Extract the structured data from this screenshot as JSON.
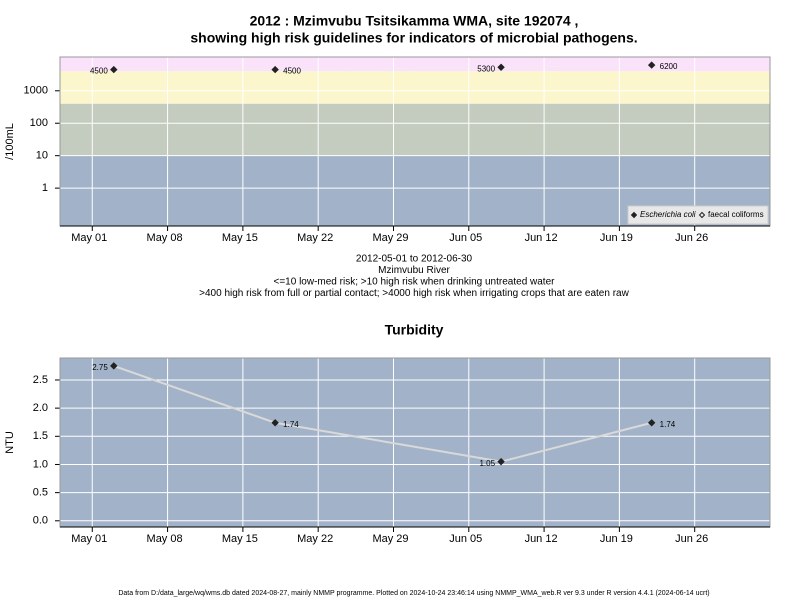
{
  "chart_data": [
    {
      "type": "scatter",
      "title": [
        "2012 : Mzimvubu Tsitsikamma WMA, site 192074 ,",
        "showing high risk guidelines for indicators of microbial pathogens."
      ],
      "y_label": "/100mL",
      "log_y": true,
      "x": [
        "2012-05-03",
        "2012-05-18",
        "2012-06-08",
        "2012-06-22"
      ],
      "series": [
        {
          "name": "Escherichia coli",
          "color": "#222222",
          "marker": "filled-diamond",
          "values": [
            4500,
            4500,
            5300,
            6200
          ]
        },
        {
          "name": "faecal coliforms",
          "color": "#222222",
          "marker": "open-diamond",
          "values": [
            null,
            null,
            null,
            null
          ]
        }
      ],
      "thresholds": [
        10,
        400,
        4000
      ],
      "band_colors": [
        "#a2b3c9",
        "#c4cbbf",
        "#fbf6cc",
        "#fbe2fb"
      ],
      "xlim": [
        "2012-04-28",
        "2012-07-03"
      ],
      "xticks": [
        {
          "value": "2012-05-01",
          "label": "May 01"
        },
        {
          "value": "2012-05-08",
          "label": "May 08"
        },
        {
          "value": "2012-05-15",
          "label": "May 15"
        },
        {
          "value": "2012-05-22",
          "label": "May 22"
        },
        {
          "value": "2012-05-29",
          "label": "May 29"
        },
        {
          "value": "2012-06-05",
          "label": "Jun 05"
        },
        {
          "value": "2012-06-12",
          "label": "Jun 12"
        },
        {
          "value": "2012-06-19",
          "label": "Jun 19"
        },
        {
          "value": "2012-06-26",
          "label": "Jun 26"
        }
      ],
      "ylim": [
        0.068,
        11000
      ],
      "yticks": [
        1,
        10,
        100,
        1000
      ],
      "grid": true,
      "legend": "bottom-right",
      "captions": [
        "2012-05-01 to 2012-06-30",
        "Mzimvubu River",
        "<=10 low-med risk; >10 high risk when drinking untreated water",
        ">400 high risk from full or partial contact; >4000 high risk when irrigating crops that are eaten raw"
      ]
    },
    {
      "type": "line",
      "title": [
        "Turbidity"
      ],
      "y_label": "NTU",
      "x": [
        "2012-05-03",
        "2012-05-18",
        "2012-06-08",
        "2012-06-22"
      ],
      "series": [
        {
          "name": "Turbidity",
          "color": "#222222",
          "line_color": "#d9d9d9",
          "values": [
            2.75,
            1.74,
            1.05,
            1.74
          ]
        }
      ],
      "band_colors": [
        "#a2b3c9"
      ],
      "xlim": [
        "2012-04-28",
        "2012-07-03"
      ],
      "xticks": [
        {
          "value": "2012-05-01",
          "label": "May 01"
        },
        {
          "value": "2012-05-08",
          "label": "May 08"
        },
        {
          "value": "2012-05-15",
          "label": "May 15"
        },
        {
          "value": "2012-05-22",
          "label": "May 22"
        },
        {
          "value": "2012-05-29",
          "label": "May 29"
        },
        {
          "value": "2012-06-05",
          "label": "Jun 05"
        },
        {
          "value": "2012-06-12",
          "label": "Jun 12"
        },
        {
          "value": "2012-06-19",
          "label": "Jun 19"
        },
        {
          "value": "2012-06-26",
          "label": "Jun 26"
        }
      ],
      "ylim": [
        -0.11,
        2.89
      ],
      "yticks": [
        {
          "value": 0,
          "label": "0.0"
        },
        {
          "value": 0.5,
          "label": "0.5"
        },
        {
          "value": 1,
          "label": "1.0"
        },
        {
          "value": 1.5,
          "label": "1.5"
        },
        {
          "value": 2,
          "label": "2.0"
        },
        {
          "value": 2.5,
          "label": "2.5"
        }
      ],
      "grid": true
    }
  ],
  "footer": "Data from D:/data_large/wq/wms.db dated 2024-08-27, mainly NMMP programme. Plotted on 2024-10-24 23:46:14 using NMMP_WMA_web.R ver 9.3 under R version 4.4.1 (2024-06-14 ucrt)"
}
